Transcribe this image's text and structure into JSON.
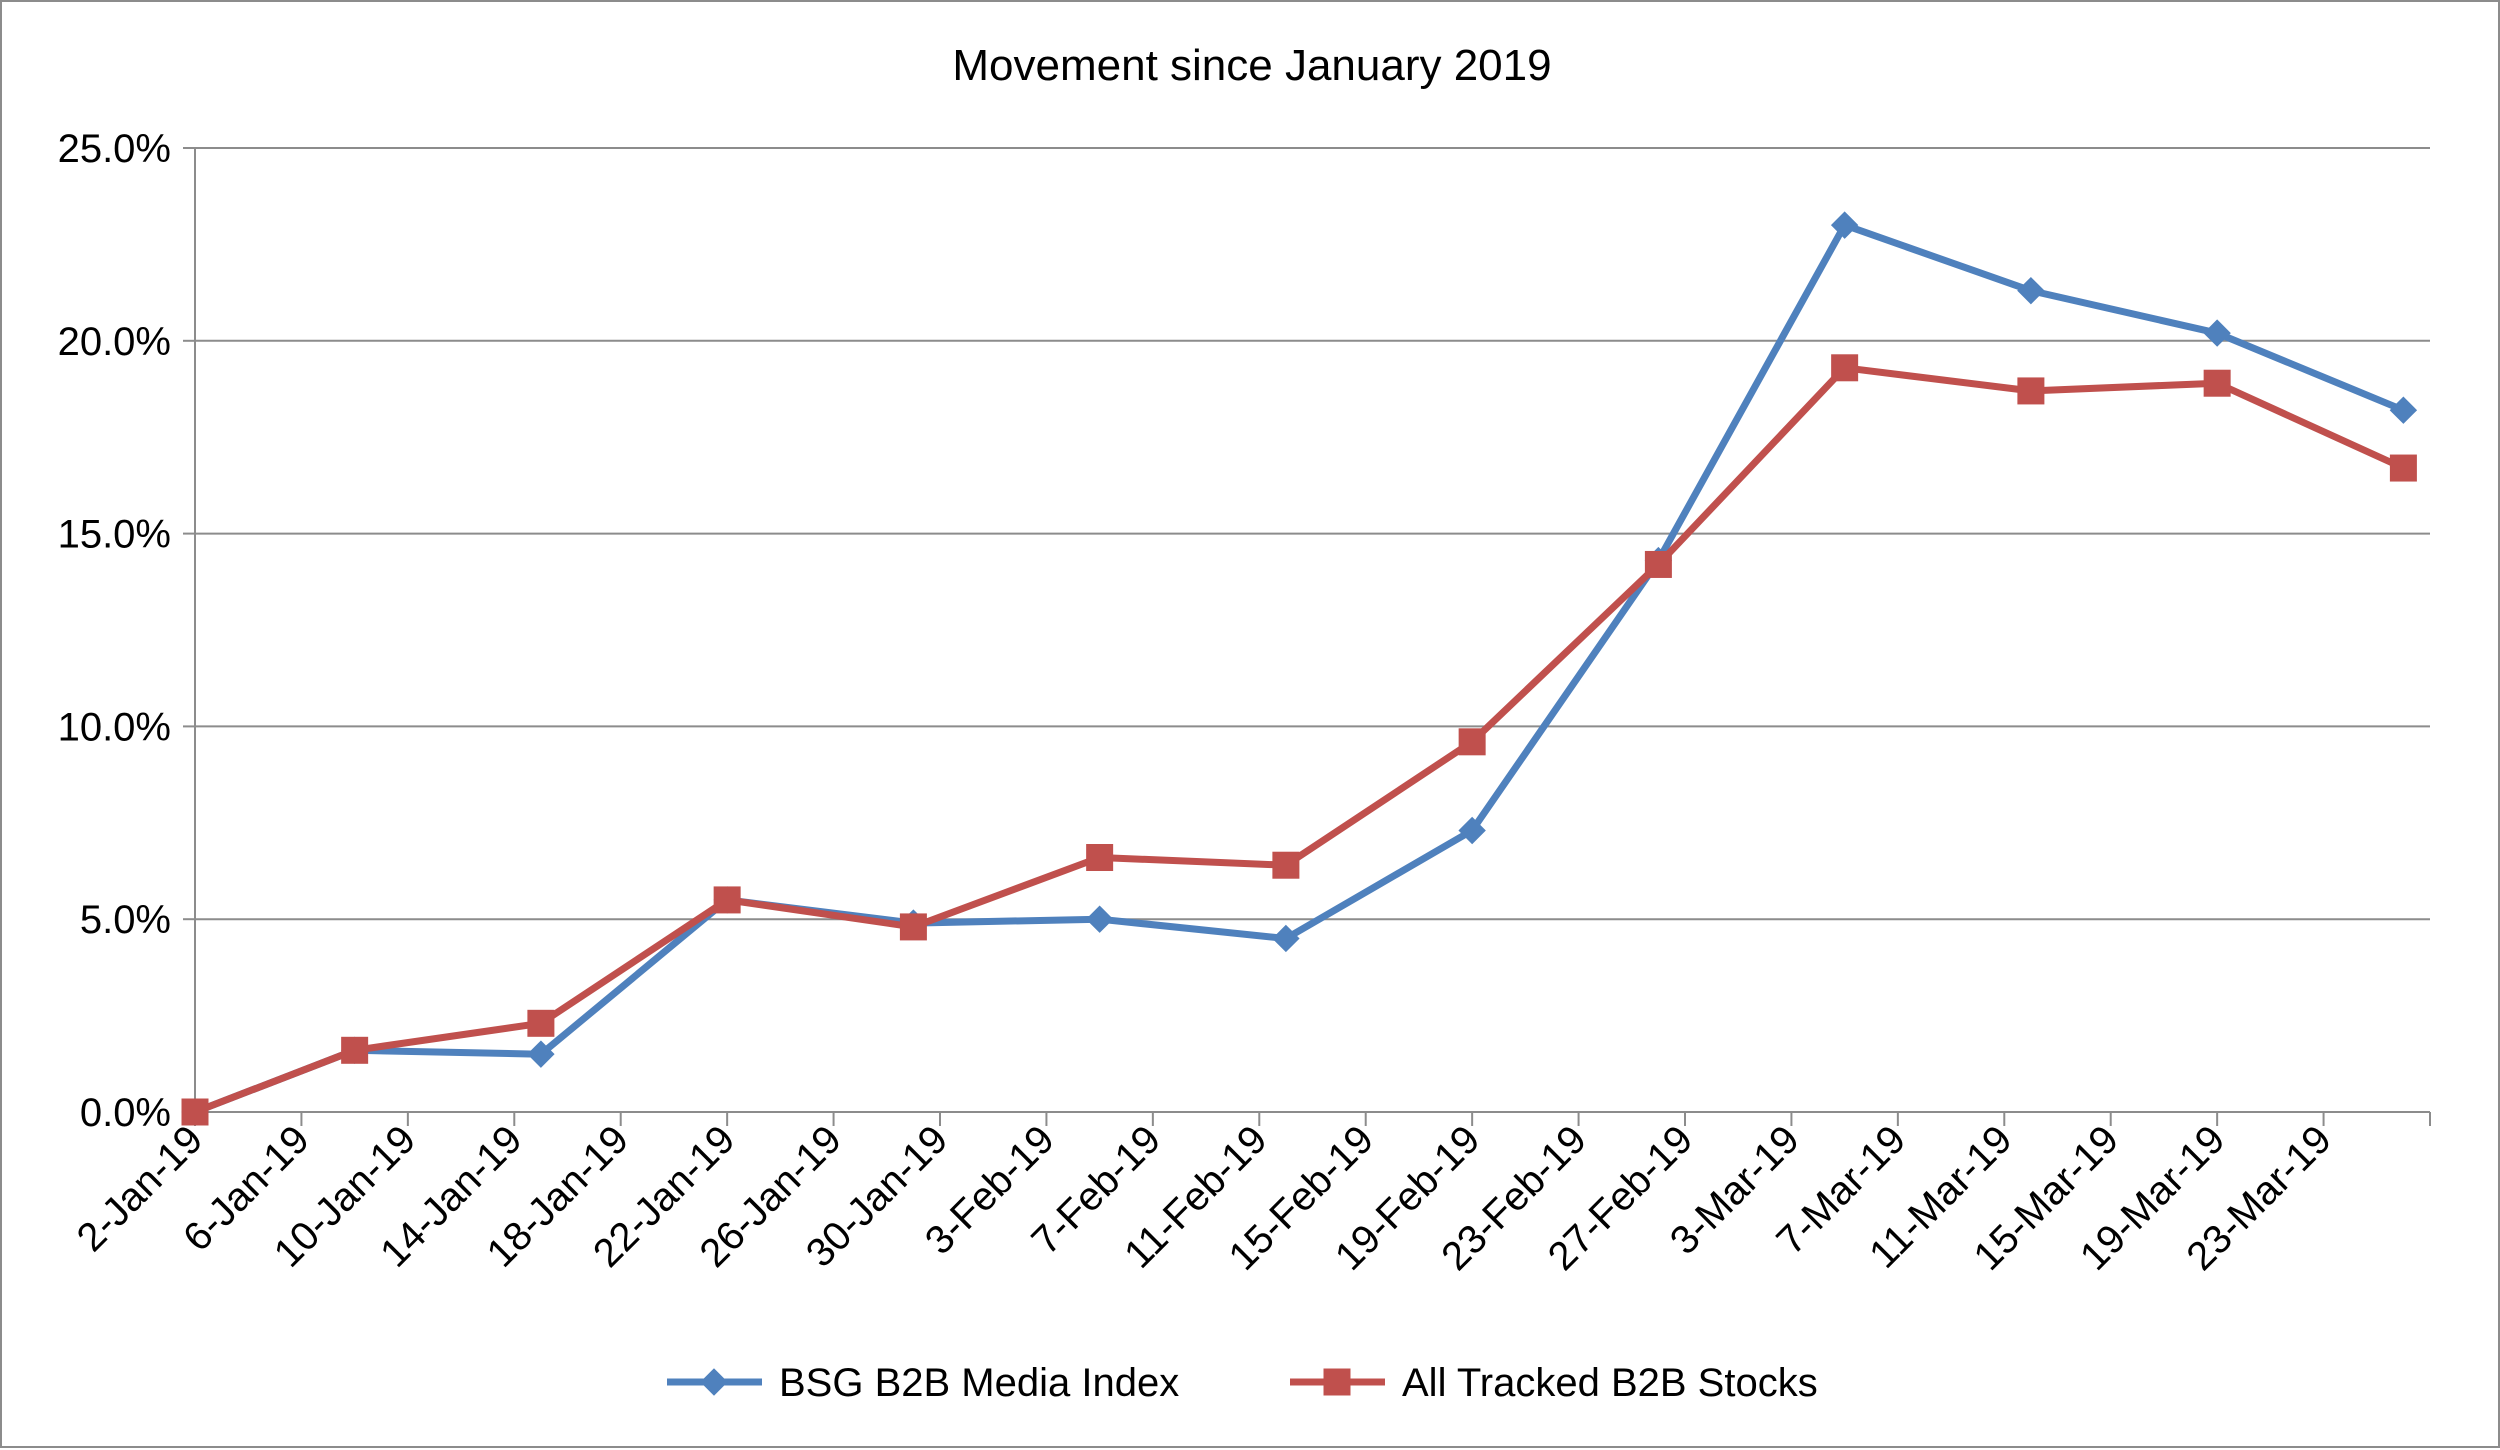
{
  "chart_data": {
    "type": "line",
    "title": "Movement since January 2019",
    "xlabel": "",
    "ylabel": "",
    "x_axis_type": "date",
    "x_tick_labels": [
      "2-Jan-19",
      "6-Jan-19",
      "10-Jan-19",
      "14-Jan-19",
      "18-Jan-19",
      "22-Jan-19",
      "26-Jan-19",
      "30-Jan-19",
      "3-Feb-19",
      "7-Feb-19",
      "11-Feb-19",
      "15-Feb-19",
      "19-Feb-19",
      "23-Feb-19",
      "27-Feb-19",
      "3-Mar-19",
      "7-Mar-19",
      "11-Mar-19",
      "15-Mar-19",
      "19-Mar-19",
      "23-Mar-19"
    ],
    "x_tick_dates": [
      "2019-01-02",
      "2019-01-06",
      "2019-01-10",
      "2019-01-14",
      "2019-01-18",
      "2019-01-22",
      "2019-01-26",
      "2019-01-30",
      "2019-02-03",
      "2019-02-07",
      "2019-02-11",
      "2019-02-15",
      "2019-02-19",
      "2019-02-23",
      "2019-02-27",
      "2019-03-03",
      "2019-03-07",
      "2019-03-11",
      "2019-03-15",
      "2019-03-19",
      "2019-03-23"
    ],
    "x_range": [
      "2019-01-02",
      "2019-03-27"
    ],
    "y_tick_labels": [
      "0.0%",
      "5.0%",
      "10.0%",
      "15.0%",
      "20.0%",
      "25.0%"
    ],
    "y_tick_values": [
      0,
      5,
      10,
      15,
      20,
      25
    ],
    "ylim": [
      0,
      25
    ],
    "y_unit": "%",
    "grid": true,
    "gridlines": "horizontal",
    "legend_position": "bottom",
    "x": [
      "2019-01-02",
      "2019-01-08",
      "2019-01-15",
      "2019-01-22",
      "2019-01-29",
      "2019-02-05",
      "2019-02-12",
      "2019-02-19",
      "2019-02-26",
      "2019-03-05",
      "2019-03-12",
      "2019-03-19",
      "2019-03-26"
    ],
    "series": [
      {
        "name": "BSG B2B Media Index",
        "color": "#4F81BD",
        "marker": "diamond",
        "values": [
          0.0,
          1.6,
          1.5,
          5.5,
          4.9,
          5.0,
          4.5,
          7.3,
          14.3,
          23.0,
          21.3,
          20.2,
          18.2
        ]
      },
      {
        "name": "All Tracked B2B Stocks",
        "color": "#C0504D",
        "marker": "square",
        "values": [
          0.0,
          1.6,
          2.3,
          5.5,
          4.8,
          6.6,
          6.4,
          9.6,
          14.2,
          19.3,
          18.7,
          18.9,
          16.7
        ]
      }
    ]
  },
  "colors": {
    "gridline": "#8c8c8c",
    "axis": "#8c8c8c",
    "border": "#8c8c8c"
  }
}
